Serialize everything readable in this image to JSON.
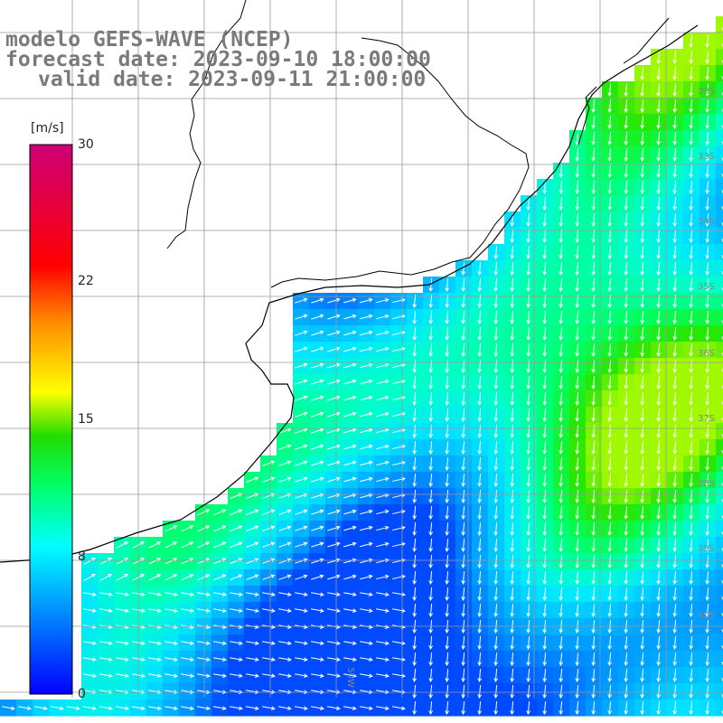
{
  "title": {
    "line1": "modelo GEFS-WAVE (NCEP)",
    "line2": "forecast date: 2023-09-10 18:00:00",
    "line3": "valid date: 2023-09-11 21:00:00"
  },
  "colorbar": {
    "unit": "[m/s]",
    "ticks": [
      {
        "label": "30",
        "value": 30
      },
      {
        "label": "22",
        "value": 22
      },
      {
        "label": "15",
        "value": 15
      },
      {
        "label": "8",
        "value": 8
      },
      {
        "label": "0",
        "value": 0
      }
    ],
    "stops": [
      "#0000ff",
      "#00aaff",
      "#00ffff",
      "#00ff66",
      "#22dd00",
      "#ffff00",
      "#ff8800",
      "#ff0000",
      "#cc0077"
    ]
  },
  "grid": {
    "lat_labels": [
      "32S",
      "33S",
      "34S",
      "35S",
      "36S",
      "37S",
      "38S",
      "39S",
      "40S"
    ],
    "lon_labels": [
      "50W"
    ]
  },
  "colors": {
    "land": "#ffffff",
    "coast": "#000000",
    "grid": "#9a9a9a",
    "arrow": "#ffffff",
    "title_text": "#7a7a7a"
  },
  "map_semantics": {
    "field": "wind speed",
    "region": "South Atlantic coast (Uruguay / Rio de la Plata / Buenos Aires)"
  }
}
